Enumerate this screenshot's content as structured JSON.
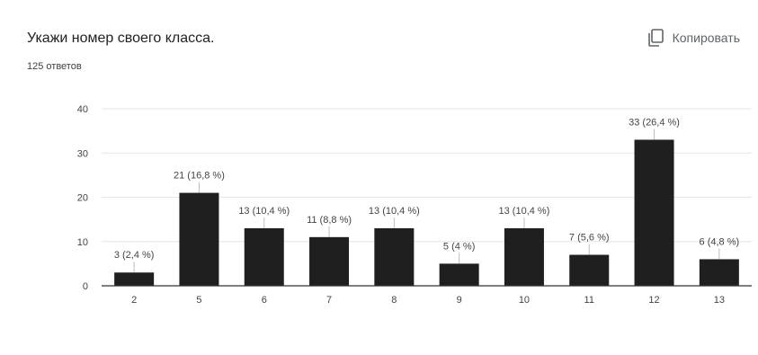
{
  "header": {
    "title": "Укажи номер своего класса.",
    "copy_label": "Копировать"
  },
  "summary": {
    "responses": "125 ответов"
  },
  "colors": {
    "bar": "#1f1f1f",
    "grid": "#e6e6e6",
    "axis": "#333333",
    "label": "#444444"
  },
  "icons": {
    "copy": "copy-icon"
  },
  "chart_data": {
    "type": "bar",
    "categories": [
      "2",
      "5",
      "6",
      "7",
      "8",
      "9",
      "10",
      "11",
      "12",
      "13"
    ],
    "values": [
      3,
      21,
      13,
      11,
      13,
      5,
      13,
      7,
      33,
      6
    ],
    "data_labels": [
      "3 (2,4 %)",
      "21 (16,8 %)",
      "13 (10,4 %)",
      "11 (8,8 %)",
      "13 (10,4 %)",
      "5 (4 %)",
      "13 (10,4 %)",
      "7 (5,6 %)",
      "33 (26,4 %)",
      "6 (4,8 %)"
    ],
    "y_ticks": [
      "0",
      "10",
      "20",
      "30",
      "40"
    ],
    "ylim": [
      0,
      40
    ],
    "title": "Укажи номер своего класса.",
    "xlabel": "",
    "ylabel": "",
    "grid": true
  }
}
